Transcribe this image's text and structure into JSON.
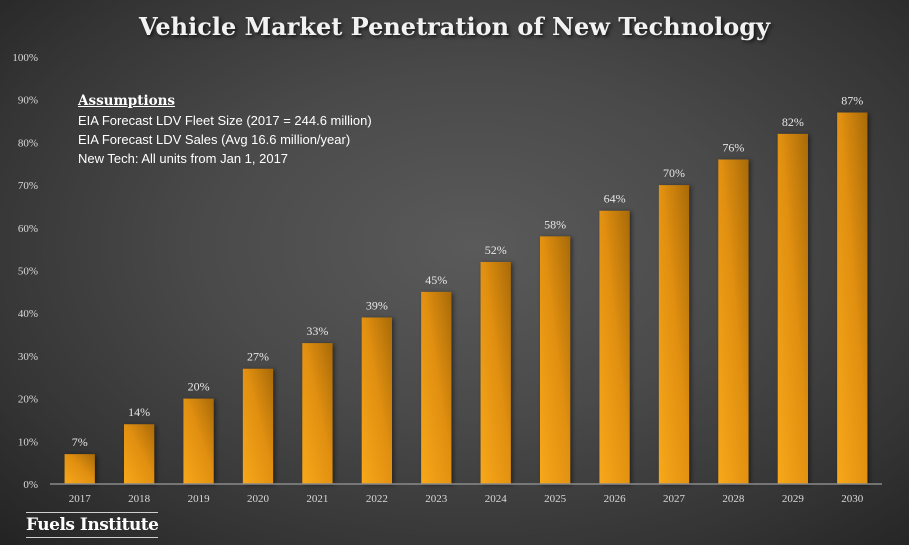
{
  "chart_data": {
    "type": "bar",
    "title": "Vehicle Market Penetration of New Technology",
    "xlabel": "",
    "ylabel": "",
    "categories": [
      "2017",
      "2018",
      "2019",
      "2020",
      "2021",
      "2022",
      "2023",
      "2024",
      "2025",
      "2026",
      "2027",
      "2028",
      "2029",
      "2030"
    ],
    "values": [
      7,
      14,
      20,
      27,
      33,
      39,
      45,
      52,
      58,
      64,
      70,
      76,
      82,
      87
    ],
    "data_labels": [
      "7%",
      "14%",
      "20%",
      "27%",
      "33%",
      "39%",
      "45%",
      "52%",
      "58%",
      "64%",
      "70%",
      "76%",
      "82%",
      "87%"
    ],
    "ylim": [
      0,
      100
    ],
    "yticks": [
      0,
      10,
      20,
      30,
      40,
      50,
      60,
      70,
      80,
      90,
      100
    ],
    "ytick_labels": [
      "0%",
      "10%",
      "20%",
      "30%",
      "40%",
      "50%",
      "60%",
      "70%",
      "80%",
      "90%",
      "100%"
    ],
    "grid": false,
    "legend": "none",
    "bar_color": "#f5a31a"
  },
  "assumptions": {
    "heading": "Assumptions",
    "lines": [
      "EIA Forecast LDV Fleet Size (2017 = 244.6 million)",
      "EIA Forecast LDV Sales (Avg 16.6 million/year)",
      "New Tech: All units from Jan 1, 2017"
    ]
  },
  "branding": {
    "logo_text": "Fuels Institute"
  }
}
